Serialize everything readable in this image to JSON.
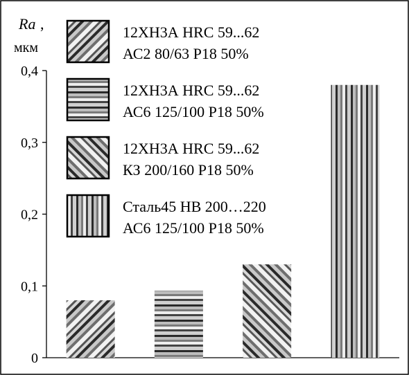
{
  "chart_data": {
    "type": "bar",
    "y_axis": {
      "label_main": "Ra",
      "label_sep": ",",
      "unit": "мкм",
      "ylim": [
        0,
        0.4
      ],
      "ticks": [
        0,
        0.1,
        0.2,
        0.3,
        0.4
      ],
      "tick_labels": [
        "0",
        "0,1",
        "0,2",
        "0,3",
        "0,4"
      ]
    },
    "categories": [
      "",
      "",
      "",
      ""
    ],
    "series": [
      {
        "line1": "12ХН3А HRC 59...62",
        "line2": "АС2 80/63 Р18 50%",
        "value": 0.08,
        "pattern": "diag-down"
      },
      {
        "line1": "12ХН3А HRC 59...62",
        "line2": "АС6 125/100 Р18 50%",
        "value": 0.093,
        "pattern": "horizontal"
      },
      {
        "line1": "12ХН3А HRC 59...62",
        "line2": "КЗ 200/160 Р18 50%",
        "value": 0.13,
        "pattern": "diag-up"
      },
      {
        "line1": "Сталь45 НВ 200…220",
        "line2": "АС6 125/100 Р18 50%",
        "value": 0.38,
        "pattern": "vertical"
      }
    ],
    "legend_position": "top-left",
    "grid": false
  }
}
